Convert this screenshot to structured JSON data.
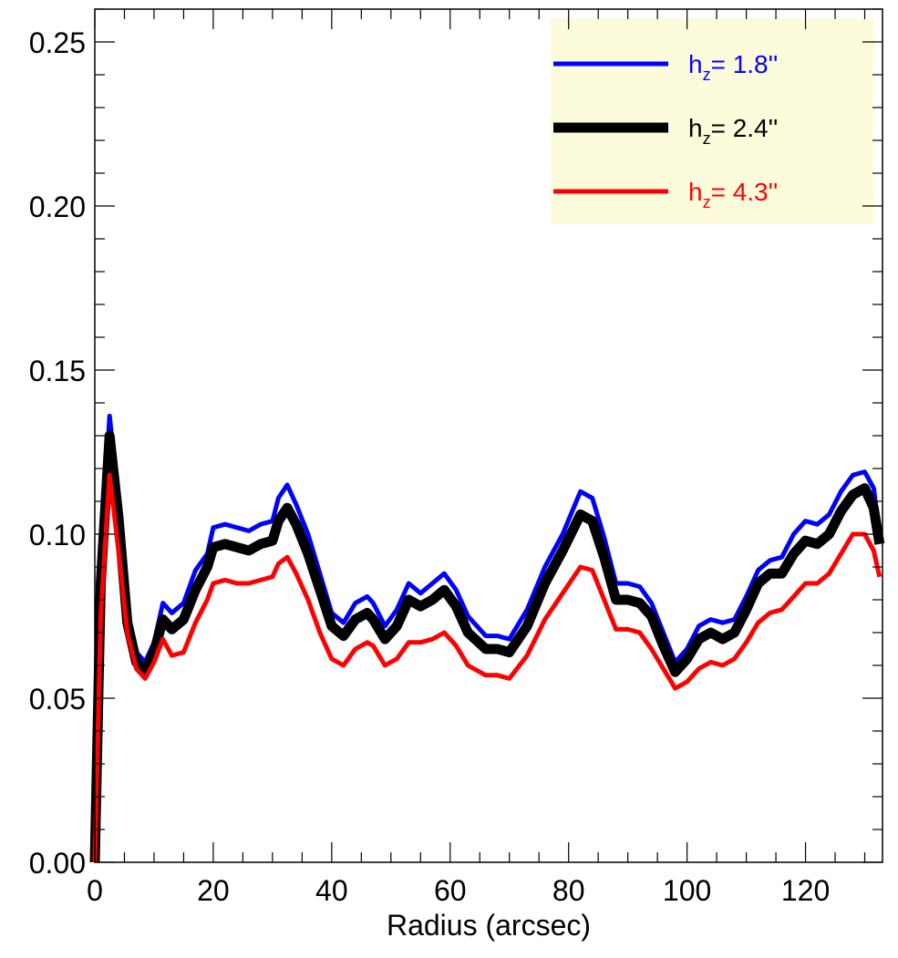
{
  "chart_data": {
    "type": "line",
    "title": "",
    "xlabel": "Radius (arcsec)",
    "ylabel": "",
    "xlim": [
      0,
      133
    ],
    "ylim": [
      0,
      0.26
    ],
    "xticks": [
      0,
      20,
      40,
      60,
      80,
      100,
      120
    ],
    "yticks": [
      0.0,
      0.05,
      0.1,
      0.15,
      0.2,
      0.25
    ],
    "ytick_labels": [
      "0.00",
      "0.05",
      "0.10",
      "0.15",
      "0.20",
      "0.25"
    ],
    "grid": false,
    "legend_position": "top-right",
    "legend_background": "#fcfcdc",
    "series": [
      {
        "name": "h_z= 1.8''",
        "legend_prefix": "h",
        "legend_sub": "z",
        "legend_value": "=   1.8''",
        "color": "#0000ff",
        "line_width": "medium",
        "values": [
          [
            0,
            0
          ],
          [
            1,
            0.09
          ],
          [
            2.5,
            0.136
          ],
          [
            4,
            0.11
          ],
          [
            5.5,
            0.077
          ],
          [
            7,
            0.064
          ],
          [
            8.5,
            0.061
          ],
          [
            10,
            0.067
          ],
          [
            11.5,
            0.079
          ],
          [
            13,
            0.076
          ],
          [
            15,
            0.079
          ],
          [
            17,
            0.089
          ],
          [
            19,
            0.094
          ],
          [
            20,
            0.102
          ],
          [
            22,
            0.103
          ],
          [
            24,
            0.102
          ],
          [
            26,
            0.101
          ],
          [
            28,
            0.103
          ],
          [
            30,
            0.104
          ],
          [
            31,
            0.111
          ],
          [
            32.5,
            0.115
          ],
          [
            34,
            0.109
          ],
          [
            36,
            0.1
          ],
          [
            38,
            0.088
          ],
          [
            40,
            0.076
          ],
          [
            42,
            0.073
          ],
          [
            44,
            0.079
          ],
          [
            46,
            0.081
          ],
          [
            47,
            0.079
          ],
          [
            49,
            0.072
          ],
          [
            51,
            0.077
          ],
          [
            53,
            0.085
          ],
          [
            55,
            0.082
          ],
          [
            57,
            0.085
          ],
          [
            59,
            0.088
          ],
          [
            61,
            0.083
          ],
          [
            63,
            0.075
          ],
          [
            66,
            0.069
          ],
          [
            68,
            0.069
          ],
          [
            70,
            0.068
          ],
          [
            73,
            0.077
          ],
          [
            76,
            0.09
          ],
          [
            79,
            0.1
          ],
          [
            82,
            0.113
          ],
          [
            84,
            0.111
          ],
          [
            86,
            0.099
          ],
          [
            88,
            0.085
          ],
          [
            90,
            0.085
          ],
          [
            92,
            0.084
          ],
          [
            94,
            0.079
          ],
          [
            96,
            0.07
          ],
          [
            98,
            0.061
          ],
          [
            100,
            0.065
          ],
          [
            102,
            0.072
          ],
          [
            104,
            0.074
          ],
          [
            106,
            0.073
          ],
          [
            108,
            0.074
          ],
          [
            110,
            0.081
          ],
          [
            112,
            0.089
          ],
          [
            114,
            0.092
          ],
          [
            116,
            0.093
          ],
          [
            118,
            0.1
          ],
          [
            120,
            0.104
          ],
          [
            122,
            0.103
          ],
          [
            124,
            0.106
          ],
          [
            126,
            0.113
          ],
          [
            128,
            0.118
          ],
          [
            130,
            0.119
          ],
          [
            131.5,
            0.114
          ],
          [
            132.5,
            0.1
          ]
        ]
      },
      {
        "name": "h_z= 2.4''",
        "legend_prefix": "h",
        "legend_sub": "z",
        "legend_value": "=   2.4''",
        "color": "#000000",
        "line_width": "thick",
        "values": [
          [
            0,
            0
          ],
          [
            1,
            0.085
          ],
          [
            2.5,
            0.13
          ],
          [
            4,
            0.105
          ],
          [
            5.5,
            0.073
          ],
          [
            7,
            0.061
          ],
          [
            8.5,
            0.058
          ],
          [
            10,
            0.064
          ],
          [
            11.5,
            0.074
          ],
          [
            13,
            0.071
          ],
          [
            15,
            0.074
          ],
          [
            17,
            0.083
          ],
          [
            19,
            0.09
          ],
          [
            20,
            0.096
          ],
          [
            22,
            0.097
          ],
          [
            24,
            0.096
          ],
          [
            26,
            0.095
          ],
          [
            28,
            0.097
          ],
          [
            30,
            0.098
          ],
          [
            31,
            0.104
          ],
          [
            32.5,
            0.108
          ],
          [
            34,
            0.103
          ],
          [
            36,
            0.094
          ],
          [
            38,
            0.083
          ],
          [
            40,
            0.072
          ],
          [
            42,
            0.069
          ],
          [
            44,
            0.074
          ],
          [
            46,
            0.076
          ],
          [
            47,
            0.074
          ],
          [
            49,
            0.068
          ],
          [
            51,
            0.072
          ],
          [
            53,
            0.08
          ],
          [
            55,
            0.078
          ],
          [
            57,
            0.08
          ],
          [
            59,
            0.083
          ],
          [
            61,
            0.078
          ],
          [
            63,
            0.07
          ],
          [
            66,
            0.065
          ],
          [
            68,
            0.065
          ],
          [
            70,
            0.064
          ],
          [
            73,
            0.072
          ],
          [
            76,
            0.085
          ],
          [
            79,
            0.095
          ],
          [
            82,
            0.106
          ],
          [
            84,
            0.104
          ],
          [
            86,
            0.093
          ],
          [
            88,
            0.08
          ],
          [
            90,
            0.08
          ],
          [
            92,
            0.079
          ],
          [
            94,
            0.075
          ],
          [
            96,
            0.066
          ],
          [
            98,
            0.058
          ],
          [
            100,
            0.062
          ],
          [
            102,
            0.068
          ],
          [
            104,
            0.07
          ],
          [
            106,
            0.068
          ],
          [
            108,
            0.07
          ],
          [
            110,
            0.077
          ],
          [
            112,
            0.085
          ],
          [
            114,
            0.088
          ],
          [
            116,
            0.088
          ],
          [
            118,
            0.094
          ],
          [
            120,
            0.098
          ],
          [
            122,
            0.097
          ],
          [
            124,
            0.1
          ],
          [
            126,
            0.107
          ],
          [
            128,
            0.112
          ],
          [
            130,
            0.114
          ],
          [
            131.5,
            0.108
          ],
          [
            132.5,
            0.097
          ]
        ]
      },
      {
        "name": "h_z= 4.3''",
        "legend_prefix": "h",
        "legend_sub": "z",
        "legend_value": "=   4.3''",
        "color": "#ff0000",
        "line_width": "medium",
        "values": [
          [
            0,
            0
          ],
          [
            1,
            0.075
          ],
          [
            2.5,
            0.118
          ],
          [
            4,
            0.095
          ],
          [
            5.5,
            0.07
          ],
          [
            7,
            0.059
          ],
          [
            8.5,
            0.056
          ],
          [
            10,
            0.061
          ],
          [
            11.5,
            0.068
          ],
          [
            13,
            0.063
          ],
          [
            15,
            0.064
          ],
          [
            17,
            0.073
          ],
          [
            19,
            0.08
          ],
          [
            20,
            0.085
          ],
          [
            22,
            0.086
          ],
          [
            24,
            0.085
          ],
          [
            26,
            0.085
          ],
          [
            28,
            0.086
          ],
          [
            30,
            0.087
          ],
          [
            31,
            0.091
          ],
          [
            32.5,
            0.093
          ],
          [
            34,
            0.088
          ],
          [
            36,
            0.08
          ],
          [
            38,
            0.07
          ],
          [
            40,
            0.062
          ],
          [
            42,
            0.06
          ],
          [
            44,
            0.065
          ],
          [
            46,
            0.067
          ],
          [
            47,
            0.066
          ],
          [
            49,
            0.06
          ],
          [
            51,
            0.062
          ],
          [
            53,
            0.067
          ],
          [
            55,
            0.067
          ],
          [
            57,
            0.068
          ],
          [
            59,
            0.07
          ],
          [
            61,
            0.066
          ],
          [
            63,
            0.06
          ],
          [
            66,
            0.057
          ],
          [
            68,
            0.057
          ],
          [
            70,
            0.056
          ],
          [
            73,
            0.063
          ],
          [
            76,
            0.074
          ],
          [
            79,
            0.082
          ],
          [
            82,
            0.09
          ],
          [
            84,
            0.089
          ],
          [
            86,
            0.08
          ],
          [
            88,
            0.071
          ],
          [
            90,
            0.071
          ],
          [
            92,
            0.07
          ],
          [
            94,
            0.065
          ],
          [
            96,
            0.059
          ],
          [
            98,
            0.053
          ],
          [
            100,
            0.055
          ],
          [
            102,
            0.059
          ],
          [
            104,
            0.061
          ],
          [
            106,
            0.06
          ],
          [
            108,
            0.062
          ],
          [
            110,
            0.067
          ],
          [
            112,
            0.073
          ],
          [
            114,
            0.076
          ],
          [
            116,
            0.077
          ],
          [
            118,
            0.081
          ],
          [
            120,
            0.085
          ],
          [
            122,
            0.085
          ],
          [
            124,
            0.088
          ],
          [
            126,
            0.094
          ],
          [
            128,
            0.1
          ],
          [
            130,
            0.1
          ],
          [
            131.5,
            0.095
          ],
          [
            132.5,
            0.087
          ]
        ]
      }
    ]
  }
}
